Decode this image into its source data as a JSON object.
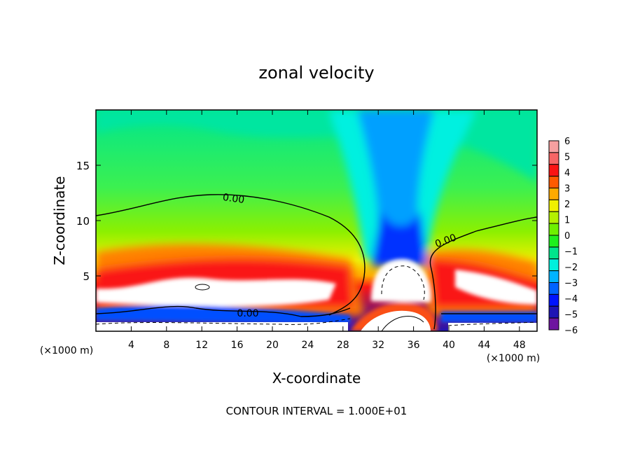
{
  "chart_data": {
    "type": "heatmap",
    "title": "zonal velocity",
    "xlabel": "X-coordinate",
    "ylabel": "Z-coordinate",
    "x_unit_label": "(×1000 m)",
    "y_unit_label": "(×1000 m)",
    "xlim": [
      0,
      50
    ],
    "ylim": [
      0,
      20
    ],
    "xticks": [
      4,
      8,
      12,
      16,
      20,
      24,
      28,
      32,
      36,
      40,
      44,
      48
    ],
    "yticks": [
      5,
      10,
      15
    ],
    "colorbar": {
      "labels": [
        "6",
        "5",
        "4",
        "3",
        "2",
        "1",
        "0",
        "−1",
        "−2",
        "−3",
        "−4",
        "−5",
        "−6"
      ],
      "colors": [
        "#f7a0a0",
        "#f76565",
        "#fa1414",
        "#ff5a00",
        "#ffaa00",
        "#f0f000",
        "#b4f000",
        "#6ef000",
        "#1ef01e",
        "#00e68c",
        "#00f0dc",
        "#00b4ff",
        "#0064ff",
        "#0014ff",
        "#1e14b4",
        "#6e14a0"
      ]
    },
    "contour_labels": [
      "0.00",
      "0.00",
      "0.00"
    ],
    "footer": "CONTOUR INTERVAL = 1.000E+01"
  }
}
